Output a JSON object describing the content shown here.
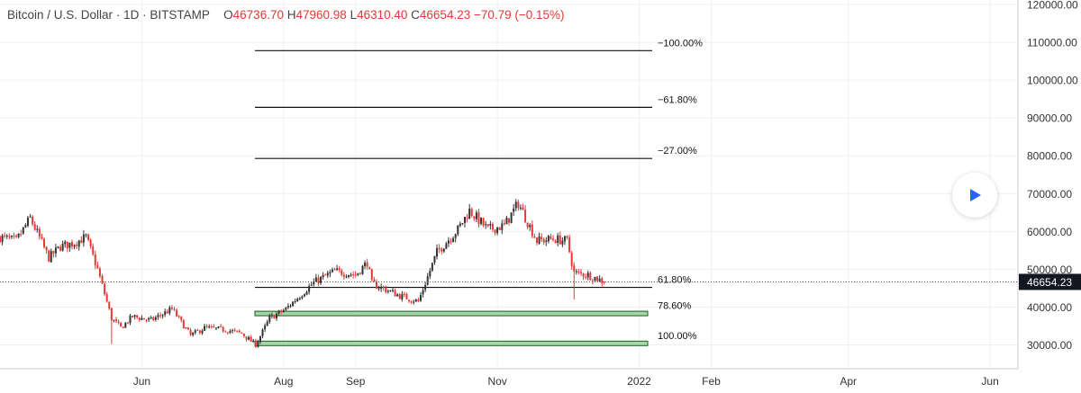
{
  "header": {
    "symbol": "Bitcoin / U.S. Dollar",
    "interval": "1D",
    "exchange": "BITSTAMP",
    "open_label": "O",
    "open": "46736.70",
    "high_label": "H",
    "high": "47960.98",
    "low_label": "L",
    "low": "46310.40",
    "close_label": "C",
    "close": "46654.23",
    "change": "−70.79 (−0.15%)"
  },
  "colors": {
    "up": "#333333",
    "down": "#e53935",
    "grid": "#eef0f3",
    "zone_fill": "#a5d6a7",
    "zone_stroke": "#1b5e20",
    "price_tag": "#131722"
  },
  "chart_data": {
    "type": "candlestick",
    "x_axis_labels": [
      "Jun",
      "Aug",
      "Sep",
      "Nov",
      "2022",
      "Feb",
      "Apr",
      "Jun"
    ],
    "y_axis_labels": [
      "30000.00",
      "40000.00",
      "50000.00",
      "60000.00",
      "70000.00",
      "80000.00",
      "90000.00",
      "100000.00",
      "110000.00",
      "120000.00"
    ],
    "y_ticks": [
      30000,
      40000,
      50000,
      60000,
      70000,
      80000,
      90000,
      100000,
      110000,
      120000
    ],
    "ylim": [
      28000,
      121500
    ],
    "last_price": 46654.23,
    "last_price_label": "46654.23",
    "fib_extension": [
      {
        "label": "−100.00%",
        "price": 107800
      },
      {
        "label": "−61.80%",
        "price": 92800
      },
      {
        "label": "−27.00%",
        "price": 79300
      }
    ],
    "fib_retracement": [
      {
        "label": "61.80%",
        "price": 45200,
        "zone": false
      },
      {
        "label": "78.60%",
        "price": 38300,
        "zone": true
      },
      {
        "label": "100.00%",
        "price": 30400,
        "zone": true
      }
    ],
    "price_path": [
      {
        "date": "2021-04-01",
        "price": 58500
      },
      {
        "date": "2021-04-08",
        "price": 57500
      },
      {
        "date": "2021-04-14",
        "price": 63500
      },
      {
        "date": "2021-04-22",
        "price": 53000
      },
      {
        "date": "2021-04-27",
        "price": 56000
      },
      {
        "date": "2021-05-03",
        "price": 57000
      },
      {
        "date": "2021-05-08",
        "price": 58500
      },
      {
        "date": "2021-05-13",
        "price": 50000
      },
      {
        "date": "2021-05-19",
        "price": 37000
      },
      {
        "date": "2021-05-23",
        "price": 34500
      },
      {
        "date": "2021-05-28",
        "price": 37500
      },
      {
        "date": "2021-06-05",
        "price": 36500
      },
      {
        "date": "2021-06-14",
        "price": 39500
      },
      {
        "date": "2021-06-22",
        "price": 32500
      },
      {
        "date": "2021-06-28",
        "price": 34500
      },
      {
        "date": "2021-07-07",
        "price": 34000
      },
      {
        "date": "2021-07-14",
        "price": 33000
      },
      {
        "date": "2021-07-20",
        "price": 30000
      },
      {
        "date": "2021-07-26",
        "price": 37000
      },
      {
        "date": "2021-08-02",
        "price": 39500
      },
      {
        "date": "2021-08-14",
        "price": 46500
      },
      {
        "date": "2021-08-23",
        "price": 49500
      },
      {
        "date": "2021-09-01",
        "price": 48500
      },
      {
        "date": "2021-09-06",
        "price": 51800
      },
      {
        "date": "2021-09-08",
        "price": 46200
      },
      {
        "date": "2021-09-20",
        "price": 43000
      },
      {
        "date": "2021-09-28",
        "price": 41500
      },
      {
        "date": "2021-10-06",
        "price": 54500
      },
      {
        "date": "2021-10-15",
        "price": 60500
      },
      {
        "date": "2021-10-20",
        "price": 65500
      },
      {
        "date": "2021-10-28",
        "price": 60500
      },
      {
        "date": "2021-11-04",
        "price": 61500
      },
      {
        "date": "2021-11-10",
        "price": 67500
      },
      {
        "date": "2021-11-18",
        "price": 57500
      },
      {
        "date": "2021-11-25",
        "price": 58000
      },
      {
        "date": "2021-12-01",
        "price": 57500
      },
      {
        "date": "2021-12-04",
        "price": 49000
      },
      {
        "date": "2021-12-10",
        "price": 48500
      },
      {
        "date": "2021-12-14",
        "price": 47500
      },
      {
        "date": "2021-12-17",
        "price": 46654
      }
    ]
  }
}
